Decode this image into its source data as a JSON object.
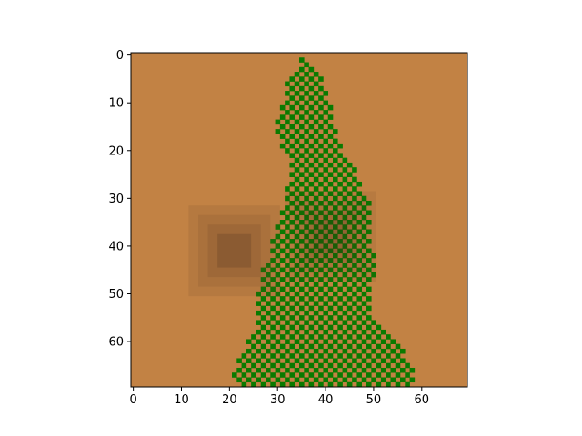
{
  "chart_data": {
    "type": "heatmap",
    "title": "",
    "xlabel": "",
    "ylabel": "",
    "xlim": [
      -0.5,
      69.5
    ],
    "ylim": [
      69.5,
      -0.5
    ],
    "x_ticks": [
      "0",
      "10",
      "20",
      "30",
      "40",
      "50",
      "60"
    ],
    "y_ticks": [
      "0",
      "10",
      "20",
      "30",
      "40",
      "50",
      "60"
    ],
    "grid": false,
    "legend": "none",
    "colors": {
      "background": "#c28244",
      "vegetation": "#0a7a00",
      "depression_dark": "#634124",
      "depression_ring": "#94663c",
      "shadow": "#3c2a17"
    },
    "background_cell_value": 0,
    "vegetation_region": {
      "pattern": "checkerboard",
      "row_extents": [
        [
          35,
          35
        ],
        [
          35,
          36
        ],
        [
          35,
          37
        ],
        [
          35,
          38
        ],
        [
          34,
          38
        ],
        [
          33,
          39
        ],
        [
          32,
          39
        ],
        [
          32,
          39
        ],
        [
          32,
          40
        ],
        [
          32,
          40
        ],
        [
          31,
          40
        ],
        [
          31,
          41
        ],
        [
          31,
          41
        ],
        [
          31,
          41
        ],
        [
          30,
          41
        ],
        [
          30,
          42
        ],
        [
          30,
          42
        ],
        [
          30,
          42
        ],
        [
          31,
          42
        ],
        [
          31,
          43
        ],
        [
          32,
          43
        ],
        [
          33,
          43
        ],
        [
          33,
          44
        ],
        [
          33,
          45
        ],
        [
          33,
          46
        ],
        [
          33,
          46
        ],
        [
          33,
          46
        ],
        [
          33,
          47
        ],
        [
          32,
          47
        ],
        [
          32,
          48
        ],
        [
          32,
          48
        ],
        [
          32,
          49
        ],
        [
          32,
          49
        ],
        [
          31,
          49
        ],
        [
          31,
          49
        ],
        [
          30,
          49
        ],
        [
          30,
          49
        ],
        [
          30,
          49
        ],
        [
          30,
          49
        ],
        [
          29,
          49
        ],
        [
          29,
          49
        ],
        [
          29,
          50
        ],
        [
          29,
          50
        ],
        [
          28,
          50
        ],
        [
          28,
          50
        ],
        [
          27,
          50
        ],
        [
          27,
          50
        ],
        [
          27,
          49
        ],
        [
          27,
          49
        ],
        [
          26,
          49
        ],
        [
          26,
          49
        ],
        [
          26,
          49
        ],
        [
          26,
          49
        ],
        [
          26,
          49
        ],
        [
          26,
          49
        ],
        [
          26,
          50
        ],
        [
          26,
          51
        ],
        [
          26,
          51
        ],
        [
          25,
          52
        ],
        [
          24,
          53
        ],
        [
          24,
          54
        ],
        [
          24,
          55
        ],
        [
          24,
          56
        ],
        [
          23,
          56
        ],
        [
          22,
          57
        ],
        [
          22,
          57
        ],
        [
          21,
          58
        ],
        [
          21,
          58
        ],
        [
          22,
          59
        ],
        [
          22,
          58
        ]
      ]
    },
    "features": [
      {
        "kind": "depression",
        "center": [
          20.5,
          40.5
        ],
        "layers": [
          {
            "x": [
              11.5,
              30.5
            ],
            "y": [
              31.5,
              50.5
            ],
            "opacity": 0.13
          },
          {
            "x": [
              13.5,
              28.5
            ],
            "y": [
              33.5,
              48.5
            ],
            "opacity": 0.13
          },
          {
            "x": [
              15.5,
              26.5
            ],
            "y": [
              35.5,
              46.5
            ],
            "opacity": 0.16
          },
          {
            "x": [
              17.5,
              24.5
            ],
            "y": [
              37.5,
              44.5
            ],
            "opacity": 0.32
          }
        ]
      },
      {
        "kind": "shadow",
        "center": [
          40.5,
          37.5
        ],
        "layers": [
          {
            "x": [
              31.5,
              50.5
            ],
            "y": [
              28.5,
              47.5
            ],
            "opacity": 0.08
          },
          {
            "x": [
              33.5,
              48.5
            ],
            "y": [
              30.5,
              45.5
            ],
            "opacity": 0.08
          },
          {
            "x": [
              35.5,
              46.5
            ],
            "y": [
              32.5,
              43.5
            ],
            "opacity": 0.1
          },
          {
            "x": [
              37.5,
              44.5
            ],
            "y": [
              34.5,
              41.5
            ],
            "opacity": 0.12
          }
        ]
      }
    ]
  }
}
